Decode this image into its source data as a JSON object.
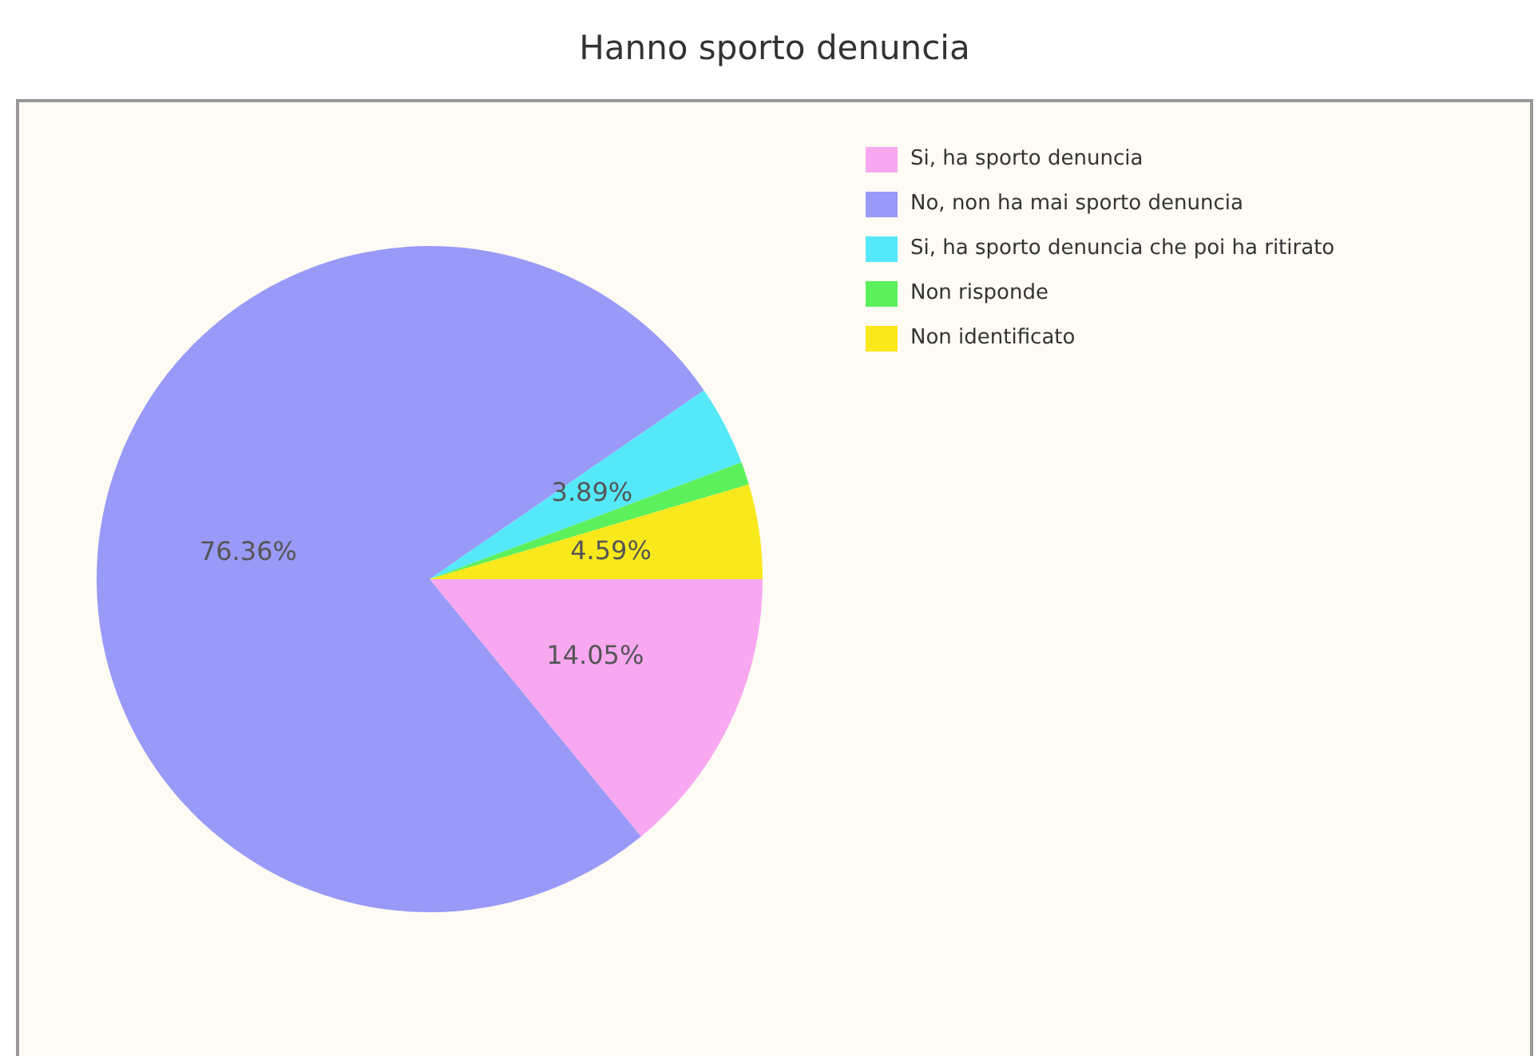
{
  "chart_data": {
    "type": "pie",
    "title": "Hanno sporto denuncia",
    "categories": [
      "Si, ha sporto denuncia",
      "No, non ha mai sporto denuncia",
      "Si, ha sporto denuncia che poi ha ritirato",
      "Non risponde",
      "Non identificato"
    ],
    "values": [
      14.05,
      76.36,
      3.89,
      1.11,
      4.59
    ],
    "colors": [
      "#f8a8f0",
      "#9999f8",
      "#55e8f8",
      "#5cf05c",
      "#f8e81c"
    ],
    "value_labels": [
      "14.05%",
      "76.36%",
      "3.89%",
      null,
      "4.59%"
    ],
    "legend": "top right"
  }
}
